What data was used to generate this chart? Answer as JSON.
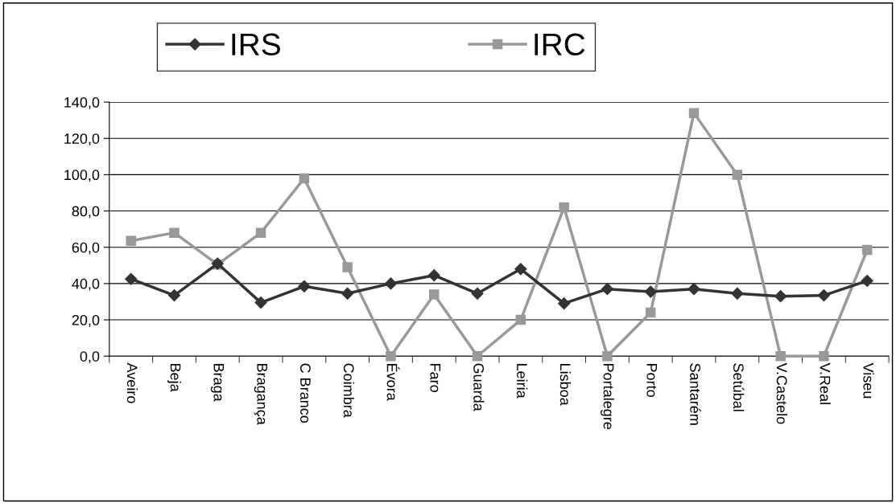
{
  "chart_data": {
    "type": "line",
    "categories": [
      "Aveiro",
      "Beja",
      "Braga",
      "Bragança",
      "C Branco",
      "Coimbra",
      "Évora",
      "Faro",
      "Guarda",
      "Leiria",
      "Lisboa",
      "Portalegre",
      "Porto",
      "Santarém",
      "Setúbal",
      "V.Castelo",
      "V.Real",
      "Viseu"
    ],
    "series": [
      {
        "name": "IRS",
        "color": "#333333",
        "marker": "diamond",
        "values": [
          42.5,
          33.5,
          51,
          29.5,
          38.5,
          34.5,
          40,
          44.5,
          34.5,
          48,
          29,
          37,
          35.5,
          37,
          34.5,
          33,
          33.5,
          41.5
        ]
      },
      {
        "name": "IRC",
        "color": "#999999",
        "marker": "square",
        "values": [
          63.5,
          68,
          50.5,
          68,
          98,
          49,
          0,
          34,
          0,
          20,
          82,
          0,
          24,
          134,
          100,
          0,
          0,
          58.5
        ]
      }
    ],
    "ylim": [
      0,
      140
    ],
    "yticks": [
      {
        "value": 0,
        "label": "0,0"
      },
      {
        "value": 20,
        "label": "20,0"
      },
      {
        "value": 40,
        "label": "40,0"
      },
      {
        "value": 60,
        "label": "60,0"
      },
      {
        "value": 80,
        "label": "80,0"
      },
      {
        "value": 100,
        "label": "100,0"
      },
      {
        "value": 120,
        "label": "120,0"
      },
      {
        "value": 140,
        "label": "140,0"
      }
    ],
    "grid": "y",
    "legend": "top",
    "line_style": "solid"
  }
}
